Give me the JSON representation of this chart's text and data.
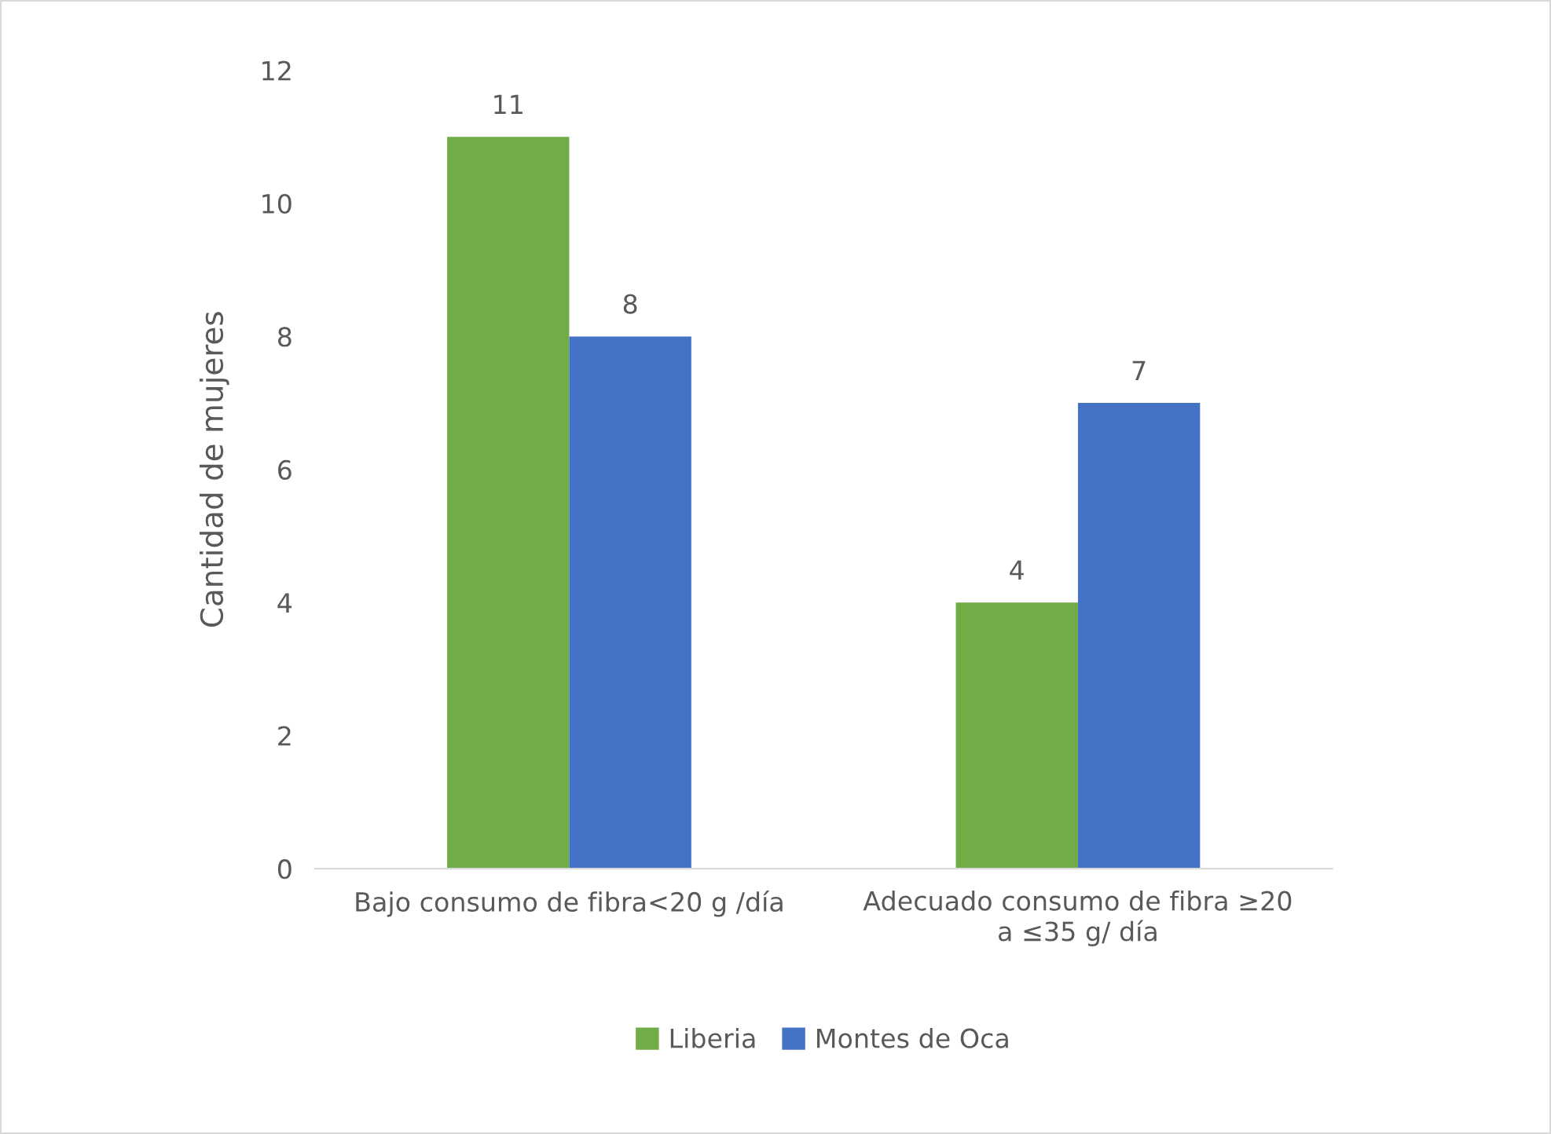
{
  "chart_data": {
    "type": "bar",
    "ylabel": "Cantidad de mujeres",
    "categories": [
      "Bajo consumo de fibra<20 g /día",
      "Adecuado consumo de fibra ≥20\na ≤35 g/ día"
    ],
    "series": [
      {
        "name": "Liberia",
        "color": "#70ad47",
        "values": [
          11,
          4
        ]
      },
      {
        "name": "Montes de Oca",
        "color": "#4472c4",
        "values": [
          8,
          7
        ]
      }
    ],
    "ylim": [
      0,
      12
    ],
    "yticks": [
      0,
      2,
      4,
      6,
      8,
      10,
      12
    ],
    "grid": false,
    "legend": "bottom",
    "data_labels": true
  }
}
